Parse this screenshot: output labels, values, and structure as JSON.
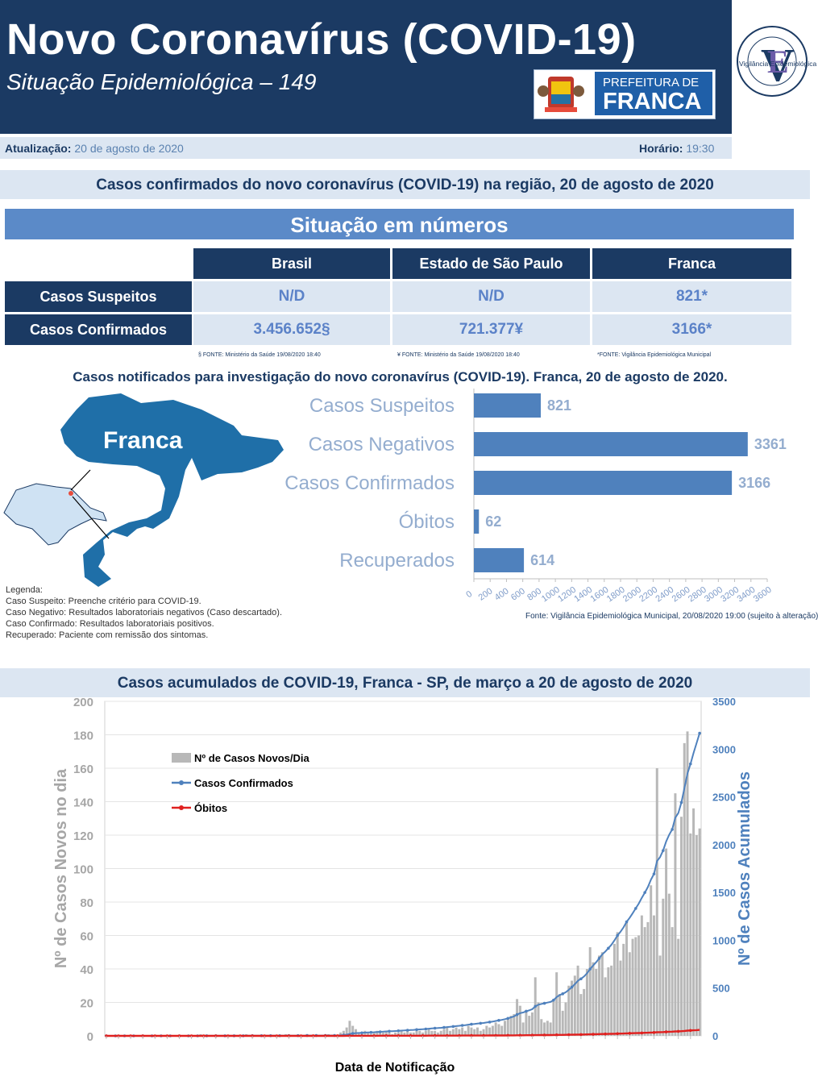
{
  "header": {
    "title": "Novo Coronavírus (COVID-19)",
    "subtitle": "Situação Epidemiológica – 149",
    "prefeitura_line1": "PREFEITURA DE",
    "prefeitura_line2": "FRANCA",
    "ve_logo_text": "Vigilância Epidemiológica"
  },
  "update": {
    "date_label": "Atualização:",
    "date_value": "20 de agosto de 2020",
    "time_label": "Horário:",
    "time_value": "19:30"
  },
  "section1_title": "Casos confirmados do novo coronavírus (COVID-19) na região, 20 de agosto de 2020",
  "situacao_title": "Situação em números",
  "table": {
    "columns": [
      "Brasil",
      "Estado de São Paulo",
      "Franca"
    ],
    "rows": [
      {
        "label": "Casos Suspeitos",
        "values": [
          "N/D",
          "N/D",
          "821*"
        ]
      },
      {
        "label": "Casos Confirmados",
        "values": [
          "3.456.652§",
          "721.377¥",
          "3166*"
        ]
      }
    ],
    "footnotes": [
      "§ FONTE: Ministério da Saúde 19/08/2020 18:40",
      "¥ FONTE: Ministério da Saúde 19/08/2020 18:40",
      "*FONTE: Vigilância Epidemiológica Municipal"
    ]
  },
  "section2_title": "Casos notificados para investigação do novo coronavírus (COVID-19). Franca, 20 de agosto de 2020.",
  "map_label": "Franca",
  "legend": {
    "title": "Legenda:",
    "items": [
      "Caso Suspeito: Preenche critério para COVID-19.",
      "Caso Negativo: Resultados laboratoriais negativos (Caso descartado).",
      "Caso Confirmado: Resultados laboratoriais positivos.",
      "Recuperado: Paciente com remissão dos sintomas."
    ]
  },
  "bar_source": "Fonte: Vigilância Epidemiológica Municipal, 20/08/2020 19:00  (sujeito à alteração)",
  "section3_title": "Casos acumulados de COVID-19, Franca - SP, de março a 20 de agosto de 2020",
  "chart_data": [
    {
      "type": "bar",
      "orientation": "horizontal",
      "categories": [
        "Casos Suspeitos",
        "Casos Negativos",
        "Casos Confirmados",
        "Óbitos",
        "Recuperados"
      ],
      "values": [
        821,
        3361,
        3166,
        62,
        614
      ],
      "xlim": [
        0,
        3600
      ],
      "xticks": [
        0,
        200,
        400,
        600,
        800,
        1000,
        1200,
        1400,
        1600,
        1800,
        2000,
        2200,
        2400,
        2600,
        2800,
        3000,
        3200,
        3400,
        3600
      ],
      "colors": [
        "#4f81bd"
      ]
    },
    {
      "type": "bar",
      "title": "Casos acumulados de COVID-19, Franca - SP, de março a 20 de agosto de 2020",
      "xlabel": "Data de Notificação",
      "ylabel": "Nº de Casos Novos no dia",
      "y2label": "Nº de Casos Acumulados",
      "ylim": [
        0,
        200
      ],
      "y2lim": [
        0,
        3500
      ],
      "yticks": [
        0,
        20,
        40,
        60,
        80,
        100,
        120,
        140,
        160,
        180,
        200
      ],
      "y2ticks": [
        0,
        500,
        1000,
        1500,
        2000,
        2500,
        3000,
        3500
      ],
      "legend_position": "top-left",
      "series": [
        {
          "name": "Nº de Casos Novos/Dia",
          "type": "bar",
          "color": "#b8b8b8",
          "values": [
            0,
            0,
            0,
            0,
            0,
            0,
            0,
            0,
            0,
            0,
            0,
            0,
            0,
            0,
            0,
            0,
            0,
            0,
            0,
            0,
            0,
            0,
            0,
            0,
            0,
            0,
            0,
            0,
            0,
            0,
            0,
            1,
            0,
            0,
            0,
            0,
            0,
            0,
            0,
            0,
            0,
            0,
            0,
            0,
            0,
            0,
            1,
            0,
            0,
            0,
            0,
            0,
            0,
            0,
            0,
            0,
            0,
            0,
            0,
            1,
            0,
            0,
            0,
            0,
            0,
            0,
            1,
            0,
            0,
            0,
            0,
            0,
            0,
            1,
            0,
            0,
            0,
            2,
            3,
            5,
            9,
            6,
            4,
            2,
            1,
            3,
            2,
            1,
            2,
            3,
            2,
            2,
            3,
            2,
            1,
            2,
            2,
            3,
            2,
            3,
            2,
            2,
            3,
            3,
            2,
            3,
            4,
            3,
            3,
            2,
            3,
            4,
            5,
            3,
            4,
            5,
            4,
            5,
            3,
            6,
            5,
            4,
            5,
            3,
            4,
            6,
            5,
            6,
            8,
            7,
            6,
            9,
            10,
            12,
            13,
            22,
            18,
            8,
            15,
            12,
            14,
            35,
            20,
            10,
            8,
            9,
            8,
            22,
            38,
            25,
            15,
            20,
            30,
            33,
            36,
            42,
            25,
            28,
            40,
            53,
            44,
            40,
            48,
            50,
            35,
            41,
            42,
            55,
            62,
            45,
            55,
            68,
            50,
            58,
            59,
            60,
            72,
            65,
            68,
            90,
            72,
            160,
            48,
            82,
            112,
            85,
            65,
            145,
            58,
            131,
            175,
            182,
            121,
            136,
            120,
            124
          ]
        },
        {
          "name": "Casos Confirmados",
          "type": "line",
          "axis": "y2",
          "color": "#4f81bd"
        },
        {
          "name": "Óbitos",
          "type": "line",
          "axis": "y2",
          "color": "#e0201f",
          "final_value": 62
        }
      ],
      "cumulative_final": 3166
    }
  ]
}
